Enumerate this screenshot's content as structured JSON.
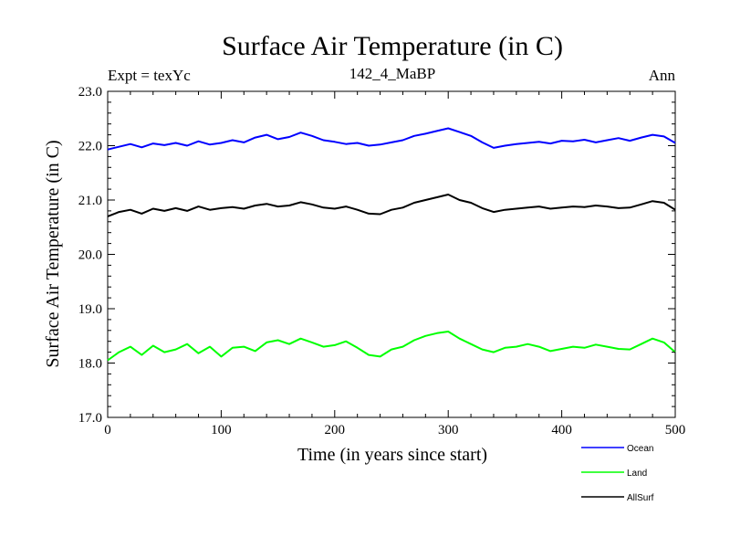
{
  "chart_data": {
    "type": "line",
    "title": "Surface Air Temperature (in C)",
    "subtitle_left": "Expt = texYc",
    "subtitle_center": "142_4_MaBP",
    "subtitle_right": "Ann",
    "xlabel": "Time (in years since start)",
    "ylabel": "Surface Air Temperature (in C)",
    "xlim": [
      0,
      500
    ],
    "ylim": [
      17.0,
      23.0
    ],
    "x_ticks": [
      0,
      100,
      200,
      300,
      400,
      500
    ],
    "y_ticks": [
      "17.0",
      "18.0",
      "19.0",
      "20.0",
      "21.0",
      "22.0",
      "23.0"
    ],
    "grid": false,
    "legend_position": "bottom-right, below plot",
    "series": [
      {
        "name": "Ocean",
        "color": "#0000ff",
        "x": [
          0,
          10,
          20,
          30,
          40,
          50,
          60,
          70,
          80,
          90,
          100,
          110,
          120,
          130,
          140,
          150,
          160,
          170,
          180,
          190,
          200,
          210,
          220,
          230,
          240,
          250,
          260,
          270,
          280,
          290,
          300,
          310,
          320,
          330,
          340,
          350,
          360,
          370,
          380,
          390,
          400,
          410,
          420,
          430,
          440,
          450,
          460,
          470,
          480,
          490,
          500
        ],
        "y": [
          21.93,
          21.98,
          22.03,
          21.97,
          22.04,
          22.01,
          22.05,
          22.0,
          22.08,
          22.02,
          22.05,
          22.1,
          22.06,
          22.15,
          22.2,
          22.12,
          22.16,
          22.24,
          22.18,
          22.1,
          22.07,
          22.03,
          22.05,
          22.0,
          22.02,
          22.06,
          22.1,
          22.18,
          22.22,
          22.27,
          22.32,
          22.25,
          22.18,
          22.06,
          21.96,
          22.0,
          22.03,
          22.05,
          22.07,
          22.04,
          22.09,
          22.08,
          22.11,
          22.06,
          22.1,
          22.14,
          22.09,
          22.15,
          22.2,
          22.17,
          22.05
        ]
      },
      {
        "name": "Land",
        "color": "#00ff00",
        "x": [
          0,
          10,
          20,
          30,
          40,
          50,
          60,
          70,
          80,
          90,
          100,
          110,
          120,
          130,
          140,
          150,
          160,
          170,
          180,
          190,
          200,
          210,
          220,
          230,
          240,
          250,
          260,
          270,
          280,
          290,
          300,
          310,
          320,
          330,
          340,
          350,
          360,
          370,
          380,
          390,
          400,
          410,
          420,
          430,
          440,
          450,
          460,
          470,
          480,
          490,
          500
        ],
        "y": [
          18.05,
          18.2,
          18.3,
          18.15,
          18.32,
          18.2,
          18.25,
          18.35,
          18.18,
          18.3,
          18.12,
          18.28,
          18.3,
          18.22,
          18.38,
          18.42,
          18.35,
          18.45,
          18.38,
          18.3,
          18.33,
          18.4,
          18.28,
          18.15,
          18.12,
          18.25,
          18.3,
          18.42,
          18.5,
          18.55,
          18.58,
          18.45,
          18.35,
          18.25,
          18.2,
          18.28,
          18.3,
          18.35,
          18.3,
          18.22,
          18.26,
          18.3,
          18.28,
          18.34,
          18.3,
          18.26,
          18.25,
          18.35,
          18.45,
          18.38,
          18.2
        ]
      },
      {
        "name": "AllSurf",
        "color": "#000000",
        "x": [
          0,
          10,
          20,
          30,
          40,
          50,
          60,
          70,
          80,
          90,
          100,
          110,
          120,
          130,
          140,
          150,
          160,
          170,
          180,
          190,
          200,
          210,
          220,
          230,
          240,
          250,
          260,
          270,
          280,
          290,
          300,
          310,
          320,
          330,
          340,
          350,
          360,
          370,
          380,
          390,
          400,
          410,
          420,
          430,
          440,
          450,
          460,
          470,
          480,
          490,
          500
        ],
        "y": [
          20.7,
          20.78,
          20.82,
          20.75,
          20.84,
          20.8,
          20.85,
          20.8,
          20.88,
          20.82,
          20.85,
          20.87,
          20.84,
          20.9,
          20.93,
          20.88,
          20.9,
          20.96,
          20.92,
          20.86,
          20.84,
          20.88,
          20.82,
          20.75,
          20.74,
          20.82,
          20.86,
          20.95,
          21.0,
          21.05,
          21.1,
          21.0,
          20.95,
          20.85,
          20.78,
          20.82,
          20.84,
          20.86,
          20.88,
          20.84,
          20.86,
          20.88,
          20.87,
          20.9,
          20.88,
          20.85,
          20.86,
          20.92,
          20.98,
          20.95,
          20.82
        ]
      }
    ]
  }
}
